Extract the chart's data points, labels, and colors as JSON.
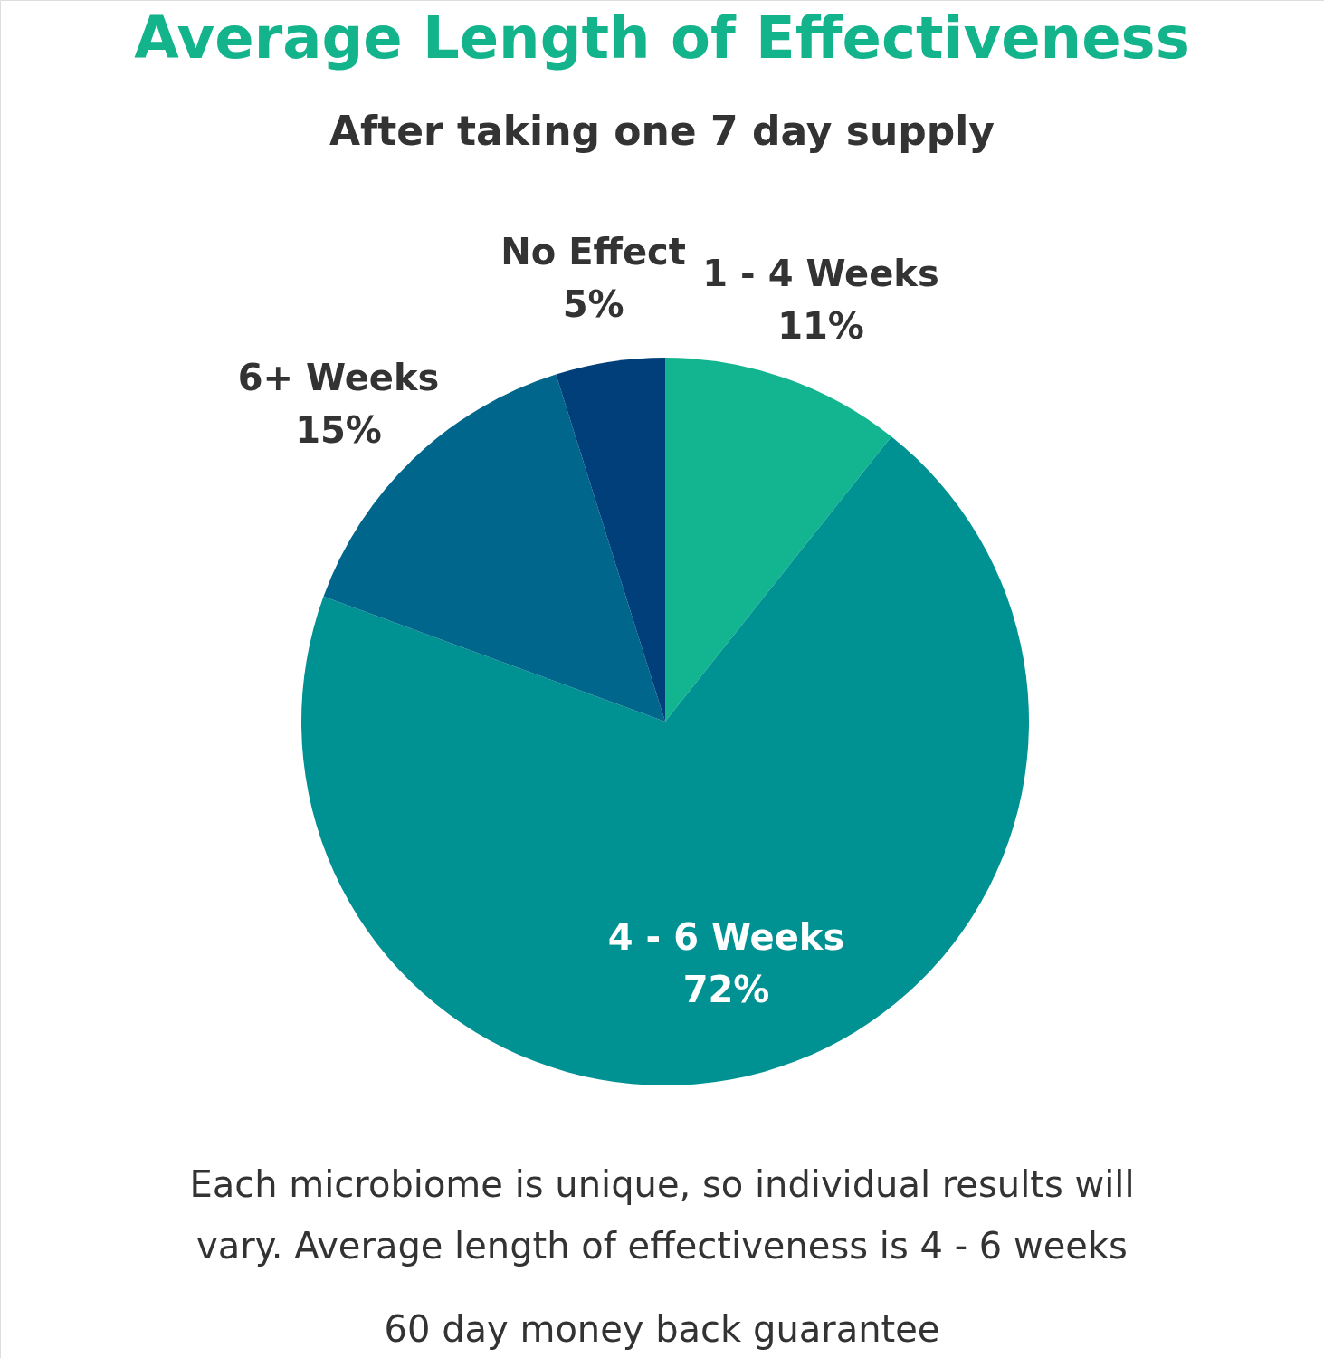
{
  "chart_data": {
    "type": "pie",
    "title": "Average Length of Effectiveness",
    "subtitle": "After taking one 7 day supply",
    "categories": [
      "1 - 4 Weeks",
      "4 - 6 Weeks",
      "6+ Weeks",
      "No Effect"
    ],
    "values": [
      11,
      72,
      15,
      5
    ],
    "value_labels": [
      "11%",
      "72%",
      "15%",
      "5%"
    ],
    "colors": [
      "#12b58f",
      "#009193",
      "#00668c",
      "#003f7a"
    ],
    "annotations": [
      "Each microbiome is unique, so individual results will vary. Average length of effectiveness is 4 - 6 weeks",
      "60 day money back guarantee"
    ]
  }
}
